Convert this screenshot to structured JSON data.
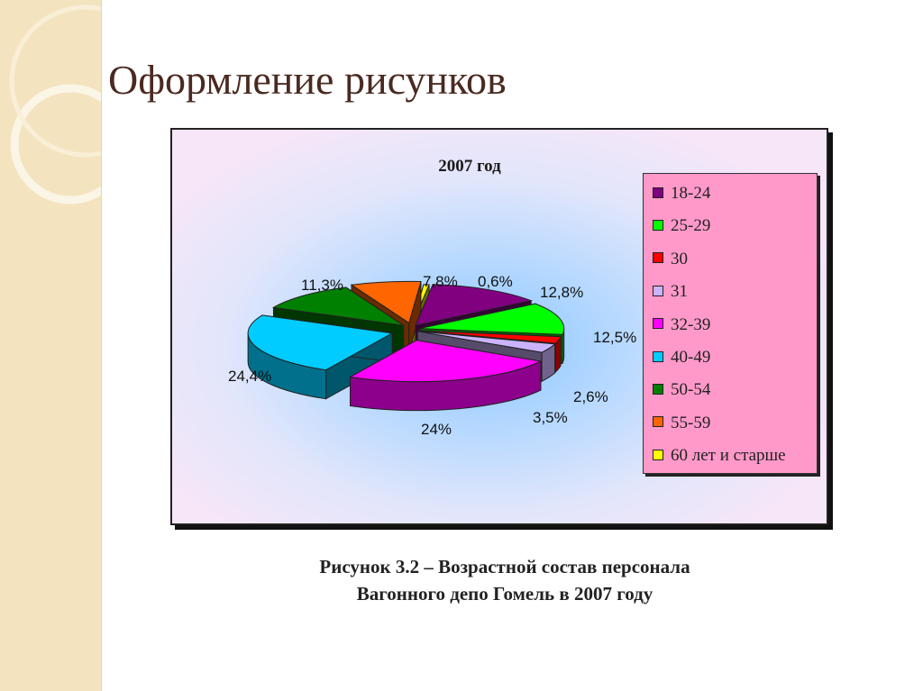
{
  "slide": {
    "title": "Оформление рисунков"
  },
  "figure": {
    "caption_line1": "Рисунок 3.2 – Возрастной состав персонала",
    "caption_line2": "Вагонного депо Гомель в 2007 году"
  },
  "chart_data": {
    "type": "pie",
    "title": "2007 год",
    "legend_position": "right",
    "slices": [
      {
        "name": "18-24",
        "value": 12.8,
        "label": "12,8%",
        "color": "#800080"
      },
      {
        "name": "25-29",
        "value": 12.5,
        "label": "12,5%",
        "color": "#00ff00"
      },
      {
        "name": "30",
        "value": 2.6,
        "label": "2,6%",
        "color": "#ff0000"
      },
      {
        "name": "31",
        "value": 3.5,
        "label": "3,5%",
        "color": "#ccb3ff"
      },
      {
        "name": "32-39",
        "value": 24.0,
        "label": "24%",
        "color": "#ff00ff"
      },
      {
        "name": "40-49",
        "value": 24.4,
        "label": "24,4%",
        "color": "#00ccff"
      },
      {
        "name": "50-54",
        "value": 11.3,
        "label": "11,3%",
        "color": "#008000"
      },
      {
        "name": "55-59",
        "value": 7.8,
        "label": "7,8%",
        "color": "#ff6600"
      },
      {
        "name": "60 лет и старше",
        "value": 0.6,
        "label": "0,6%",
        "color": "#ffff00"
      }
    ]
  }
}
